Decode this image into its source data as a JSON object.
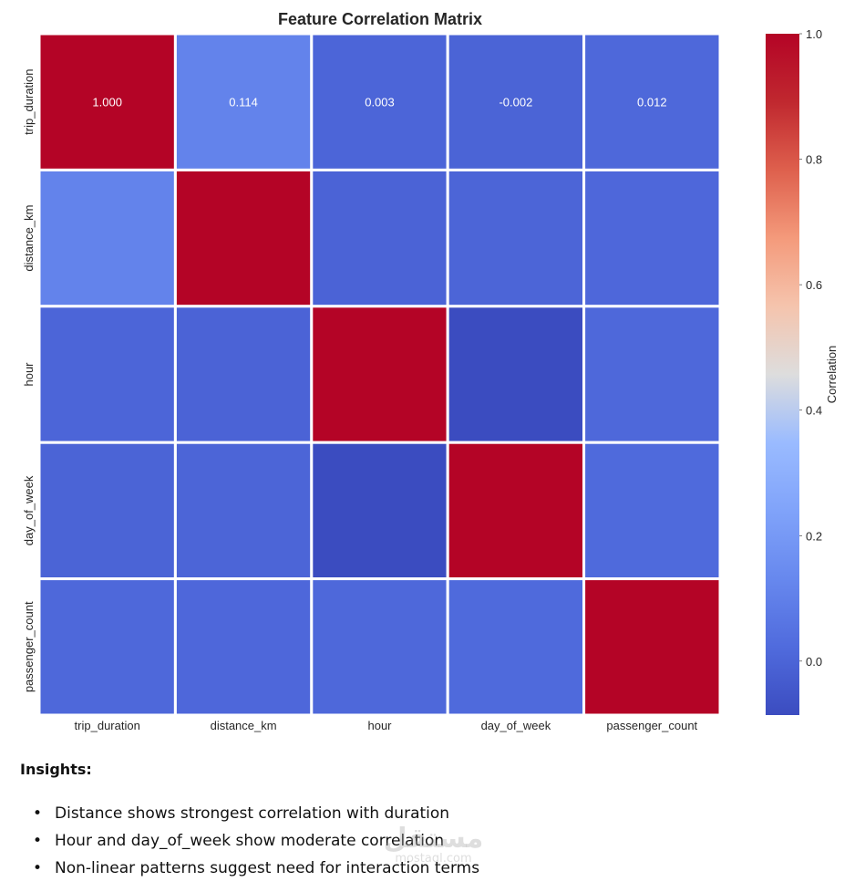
{
  "chart_data": {
    "type": "heatmap",
    "title": "Feature Correlation Matrix",
    "xlabel": "",
    "ylabel": "",
    "x_categories": [
      "trip_duration",
      "distance_km",
      "hour",
      "day_of_week",
      "passenger_count"
    ],
    "y_categories": [
      "trip_duration",
      "distance_km",
      "hour",
      "day_of_week",
      "passenger_count"
    ],
    "values": [
      [
        1.0,
        0.114,
        0.003,
        -0.002,
        0.012
      ],
      [
        0.114,
        1.0,
        -0.004,
        0.0,
        0.01
      ],
      [
        0.003,
        -0.004,
        1.0,
        -0.086,
        0.012
      ],
      [
        -0.002,
        0.0,
        -0.086,
        1.0,
        0.02
      ],
      [
        0.012,
        0.01,
        0.012,
        0.02,
        1.0
      ]
    ],
    "annotations": [
      {
        "row": 0,
        "col": 0,
        "text": "1.000"
      },
      {
        "row": 0,
        "col": 1,
        "text": "0.114"
      },
      {
        "row": 0,
        "col": 2,
        "text": "0.003"
      },
      {
        "row": 0,
        "col": 3,
        "text": "-0.002"
      },
      {
        "row": 0,
        "col": 4,
        "text": "0.012"
      }
    ],
    "colormap": "coolwarm",
    "vmin": -0.086,
    "vmax": 1.0,
    "colorbar": {
      "label": "Correlation",
      "ticks": [
        0.0,
        0.2,
        0.4,
        0.6,
        0.8,
        1.0
      ],
      "tick_labels": [
        "0.0",
        "0.2",
        "0.4",
        "0.6",
        "0.8",
        "1.0"
      ],
      "placement": "right"
    },
    "grid_line_color": "#ffffff"
  },
  "insights": {
    "heading": "Insights:",
    "bullet_glyph": "•",
    "items": [
      "Distance shows strongest correlation with duration",
      "Hour and day_of_week show moderate correlation",
      "Non-linear patterns suggest need for interaction terms"
    ]
  },
  "watermark": {
    "arabic": "مستقل",
    "latin": "mostaql.com"
  }
}
